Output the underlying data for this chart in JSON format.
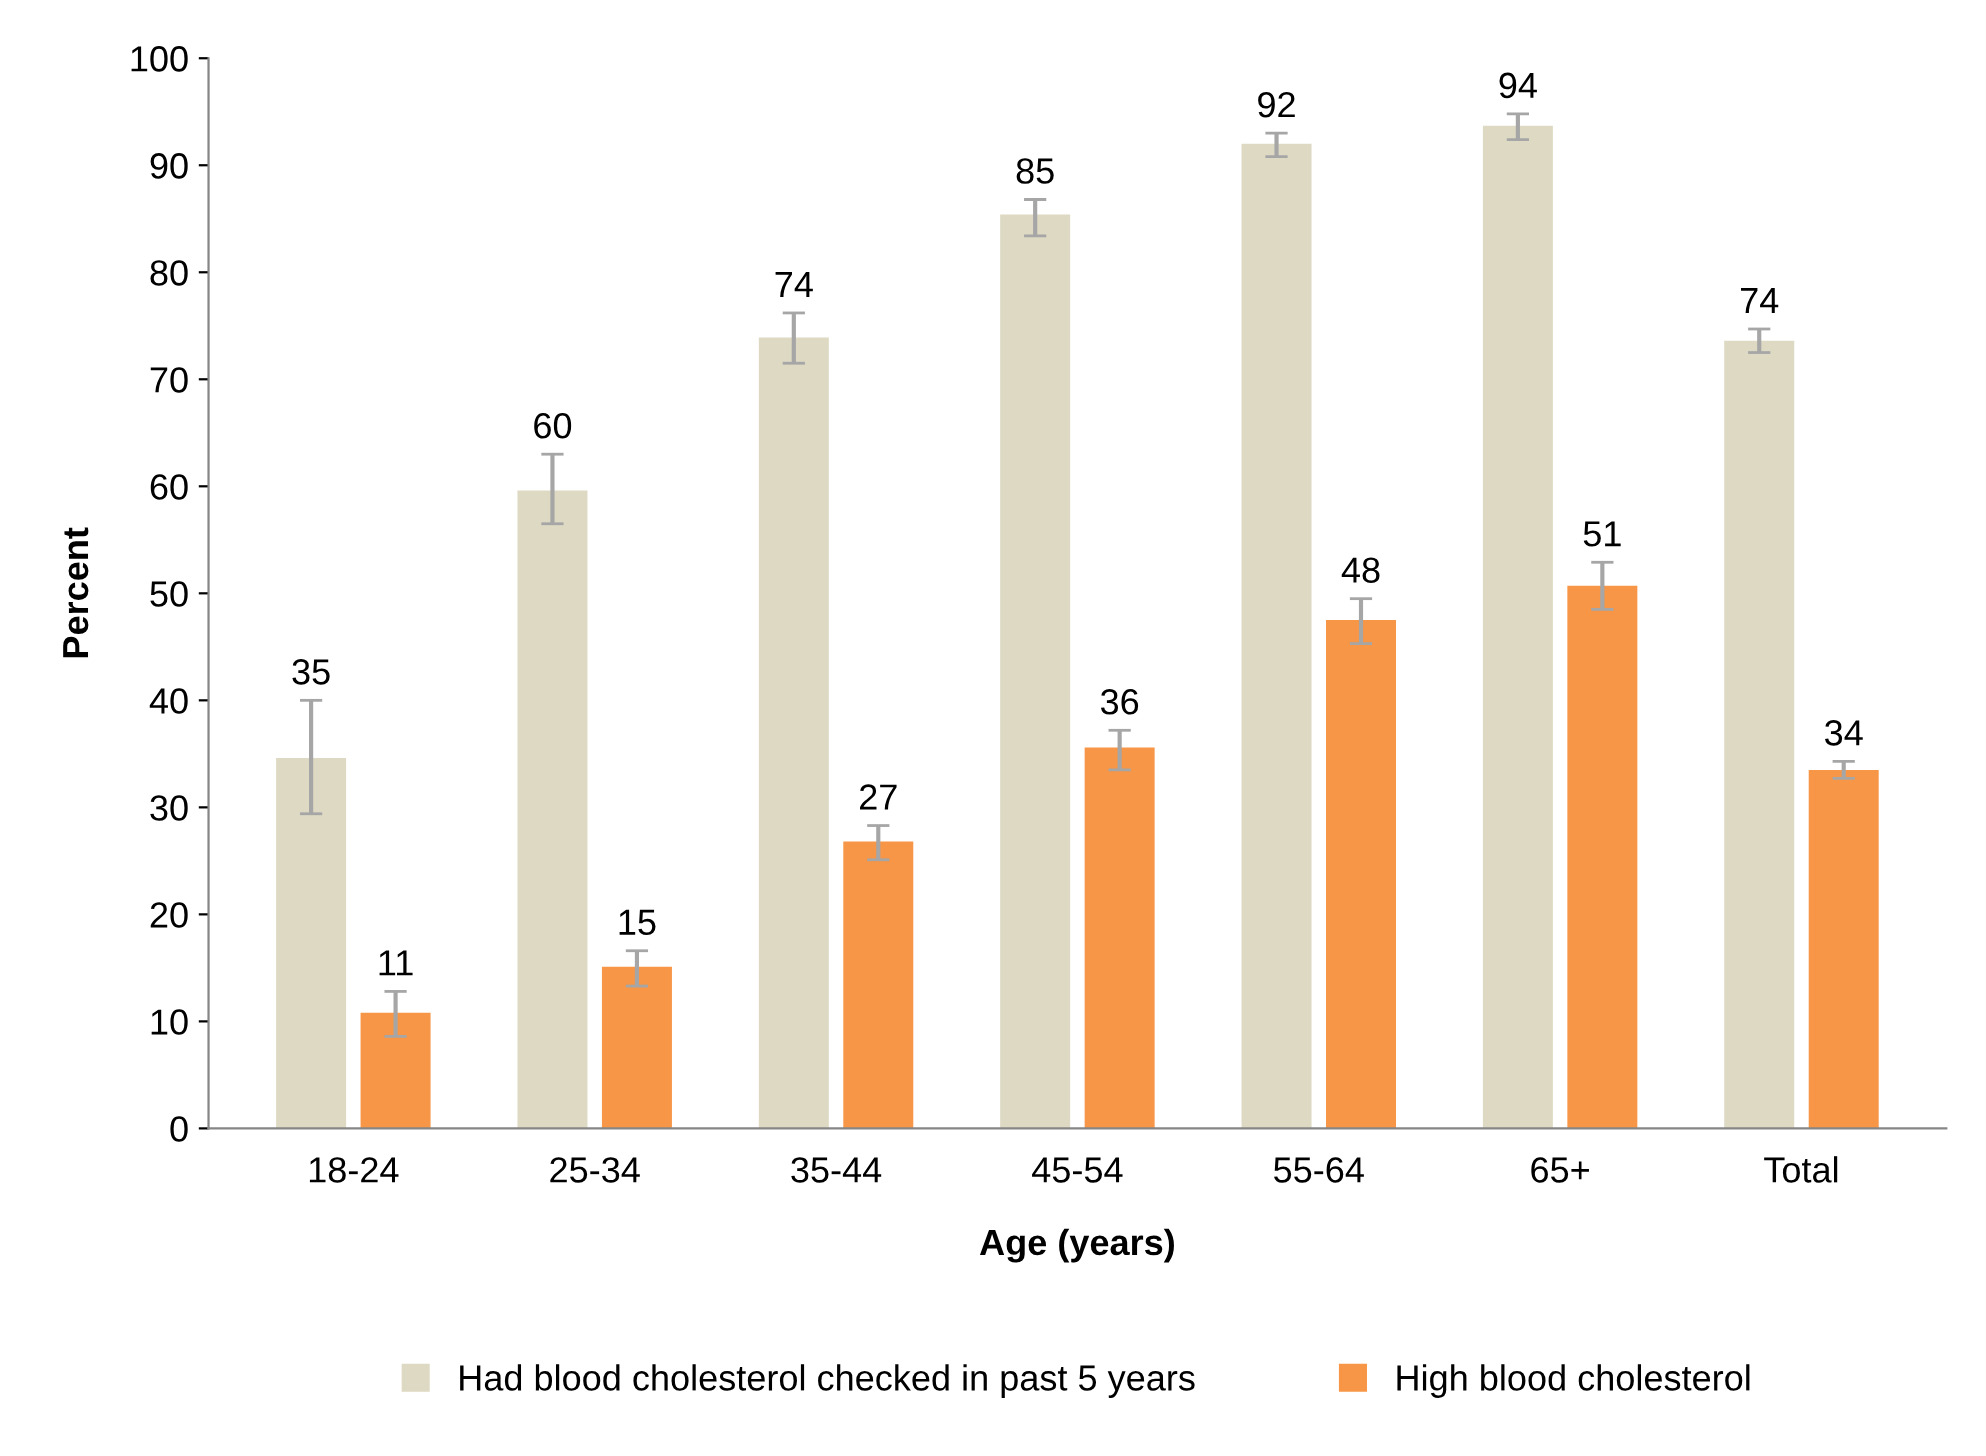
{
  "chart_data": {
    "type": "bar",
    "xlabel": "Age (years)",
    "ylabel": "Percent",
    "categories": [
      "18-24",
      "25-34",
      "35-44",
      "45-54",
      "55-64",
      "65+",
      "Total"
    ],
    "series": [
      {
        "name": "Had blood cholesterol checked in past 5 years",
        "color": "#ddd9c3",
        "values": [
          34.6,
          59.6,
          73.9,
          85.4,
          92,
          93.7,
          73.6
        ],
        "errors": [
          [
            29.4,
            40
          ],
          [
            56.5,
            63
          ],
          [
            71.5,
            76.2
          ],
          [
            83.4,
            86.8
          ],
          [
            90.8,
            93
          ],
          [
            92.4,
            94.8
          ],
          [
            72.5,
            74.7
          ]
        ],
        "value_labels": [
          "35",
          "60",
          "74",
          "85",
          "92",
          "94",
          "74"
        ]
      },
      {
        "name": "High blood cholesterol",
        "color": "#f79646",
        "values": [
          10.8,
          15.1,
          26.8,
          35.6,
          47.5,
          50.7,
          33.5
        ],
        "errors": [
          [
            8.6,
            12.8
          ],
          [
            13.3,
            16.6
          ],
          [
            25.1,
            28.3
          ],
          [
            33.5,
            37.2
          ],
          [
            45.3,
            49.5
          ],
          [
            48.5,
            52.9
          ],
          [
            32.7,
            34.3
          ]
        ],
        "value_labels": [
          "11",
          "15",
          "27",
          "36",
          "48",
          "51",
          "34"
        ]
      }
    ],
    "ylim": [
      0,
      100
    ],
    "yticks": [
      0,
      10,
      20,
      30,
      40,
      50,
      60,
      70,
      80,
      90,
      100
    ],
    "grid": false,
    "legend": "bottom"
  }
}
